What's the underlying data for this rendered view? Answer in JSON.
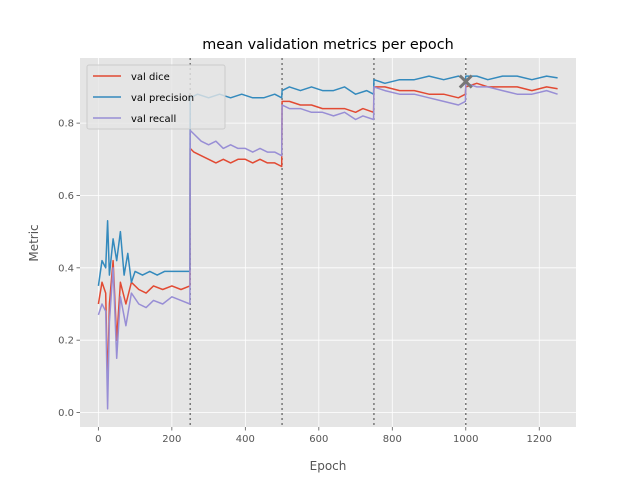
{
  "chart_data": {
    "type": "line",
    "title": "mean validation metrics per epoch",
    "xlabel": "Epoch",
    "ylabel": "Metric",
    "xlim": [
      -50,
      1300
    ],
    "ylim": [
      -0.04,
      0.98
    ],
    "xticks": [
      0,
      200,
      400,
      600,
      800,
      1000,
      1200
    ],
    "yticks": [
      0.0,
      0.2,
      0.4,
      0.6,
      0.8
    ],
    "xtick_labels": [
      "0",
      "200",
      "400",
      "600",
      "800",
      "1000",
      "1200"
    ],
    "ytick_labels": [
      "0.0",
      "0.2",
      "0.4",
      "0.6",
      "0.8"
    ],
    "grid": true,
    "legend_position": "top-left",
    "vlines": [
      250,
      500,
      750,
      1000
    ],
    "marker": {
      "x": 1000,
      "y": 0.915,
      "symbol": "x"
    },
    "series": [
      {
        "name": "val dice",
        "color": "#E24A33",
        "x": [
          0,
          10,
          20,
          25,
          30,
          40,
          50,
          60,
          75,
          90,
          110,
          130,
          150,
          175,
          200,
          225,
          249,
          250,
          260,
          280,
          300,
          320,
          340,
          360,
          380,
          400,
          420,
          440,
          460,
          480,
          499,
          500,
          520,
          550,
          580,
          610,
          640,
          670,
          700,
          720,
          749,
          750,
          780,
          820,
          860,
          900,
          940,
          980,
          999,
          1000,
          1030,
          1060,
          1100,
          1140,
          1180,
          1220,
          1250
        ],
        "values": [
          0.3,
          0.36,
          0.33,
          0.07,
          0.3,
          0.42,
          0.2,
          0.36,
          0.3,
          0.36,
          0.34,
          0.33,
          0.35,
          0.34,
          0.35,
          0.34,
          0.35,
          0.73,
          0.72,
          0.71,
          0.7,
          0.69,
          0.7,
          0.69,
          0.7,
          0.7,
          0.69,
          0.7,
          0.69,
          0.69,
          0.68,
          0.86,
          0.86,
          0.85,
          0.85,
          0.84,
          0.84,
          0.84,
          0.83,
          0.84,
          0.83,
          0.9,
          0.9,
          0.89,
          0.89,
          0.88,
          0.88,
          0.87,
          0.88,
          0.9,
          0.91,
          0.9,
          0.9,
          0.9,
          0.89,
          0.9,
          0.895
        ]
      },
      {
        "name": "val precision",
        "color": "#348ABD",
        "x": [
          0,
          10,
          20,
          25,
          30,
          40,
          50,
          60,
          70,
          80,
          90,
          100,
          120,
          140,
          160,
          180,
          200,
          225,
          249,
          250,
          270,
          300,
          330,
          360,
          390,
          420,
          450,
          480,
          499,
          500,
          520,
          550,
          580,
          610,
          640,
          670,
          700,
          730,
          749,
          750,
          780,
          820,
          860,
          900,
          940,
          980,
          999,
          1000,
          1030,
          1060,
          1100,
          1140,
          1180,
          1220,
          1250
        ],
        "values": [
          0.35,
          0.42,
          0.4,
          0.53,
          0.38,
          0.48,
          0.42,
          0.5,
          0.38,
          0.44,
          0.36,
          0.39,
          0.38,
          0.39,
          0.38,
          0.39,
          0.39,
          0.39,
          0.39,
          0.87,
          0.88,
          0.87,
          0.88,
          0.87,
          0.88,
          0.87,
          0.87,
          0.88,
          0.87,
          0.89,
          0.9,
          0.89,
          0.9,
          0.89,
          0.89,
          0.9,
          0.88,
          0.89,
          0.88,
          0.92,
          0.91,
          0.92,
          0.92,
          0.93,
          0.92,
          0.93,
          0.92,
          0.93,
          0.93,
          0.92,
          0.93,
          0.93,
          0.92,
          0.93,
          0.925
        ]
      },
      {
        "name": "val recall",
        "color": "#988ED5",
        "x": [
          0,
          10,
          20,
          25,
          30,
          40,
          50,
          60,
          75,
          90,
          110,
          130,
          150,
          175,
          200,
          225,
          249,
          250,
          260,
          280,
          300,
          320,
          340,
          360,
          380,
          400,
          420,
          440,
          460,
          480,
          499,
          500,
          520,
          550,
          580,
          610,
          640,
          670,
          700,
          720,
          749,
          750,
          780,
          820,
          860,
          900,
          940,
          980,
          999,
          1000,
          1030,
          1060,
          1100,
          1140,
          1180,
          1220,
          1250
        ],
        "values": [
          0.27,
          0.3,
          0.28,
          0.01,
          0.25,
          0.4,
          0.15,
          0.32,
          0.24,
          0.33,
          0.3,
          0.29,
          0.31,
          0.3,
          0.32,
          0.31,
          0.3,
          0.78,
          0.77,
          0.75,
          0.74,
          0.75,
          0.73,
          0.74,
          0.73,
          0.73,
          0.72,
          0.73,
          0.72,
          0.72,
          0.71,
          0.85,
          0.84,
          0.84,
          0.83,
          0.83,
          0.82,
          0.83,
          0.81,
          0.82,
          0.81,
          0.9,
          0.89,
          0.88,
          0.88,
          0.87,
          0.86,
          0.85,
          0.86,
          0.91,
          0.9,
          0.9,
          0.89,
          0.88,
          0.88,
          0.89,
          0.88
        ]
      }
    ]
  }
}
